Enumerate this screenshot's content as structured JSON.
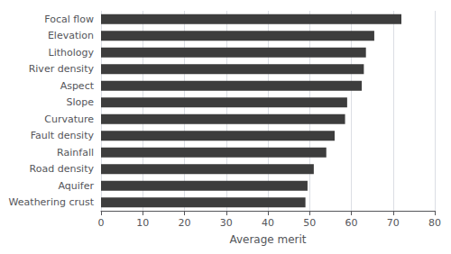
{
  "chart_data": {
    "type": "bar",
    "orientation": "horizontal",
    "categories": [
      "Weathering crust",
      "Aquifer",
      "Road density",
      "Rainfall",
      "Fault density",
      "Curvature",
      "Slope",
      "Aspect",
      "River density",
      "Lithology",
      "Elevation",
      "Focal flow"
    ],
    "values": [
      49,
      49.5,
      51,
      54,
      56,
      58.5,
      59,
      62.5,
      63,
      63.5,
      65.5,
      72
    ],
    "color": "#3d3d3d",
    "xlabel": "Average merit",
    "xlim": [
      0,
      80
    ],
    "xticks": [
      0,
      10,
      20,
      30,
      40,
      50,
      60,
      70,
      80
    ],
    "grid": true
  }
}
